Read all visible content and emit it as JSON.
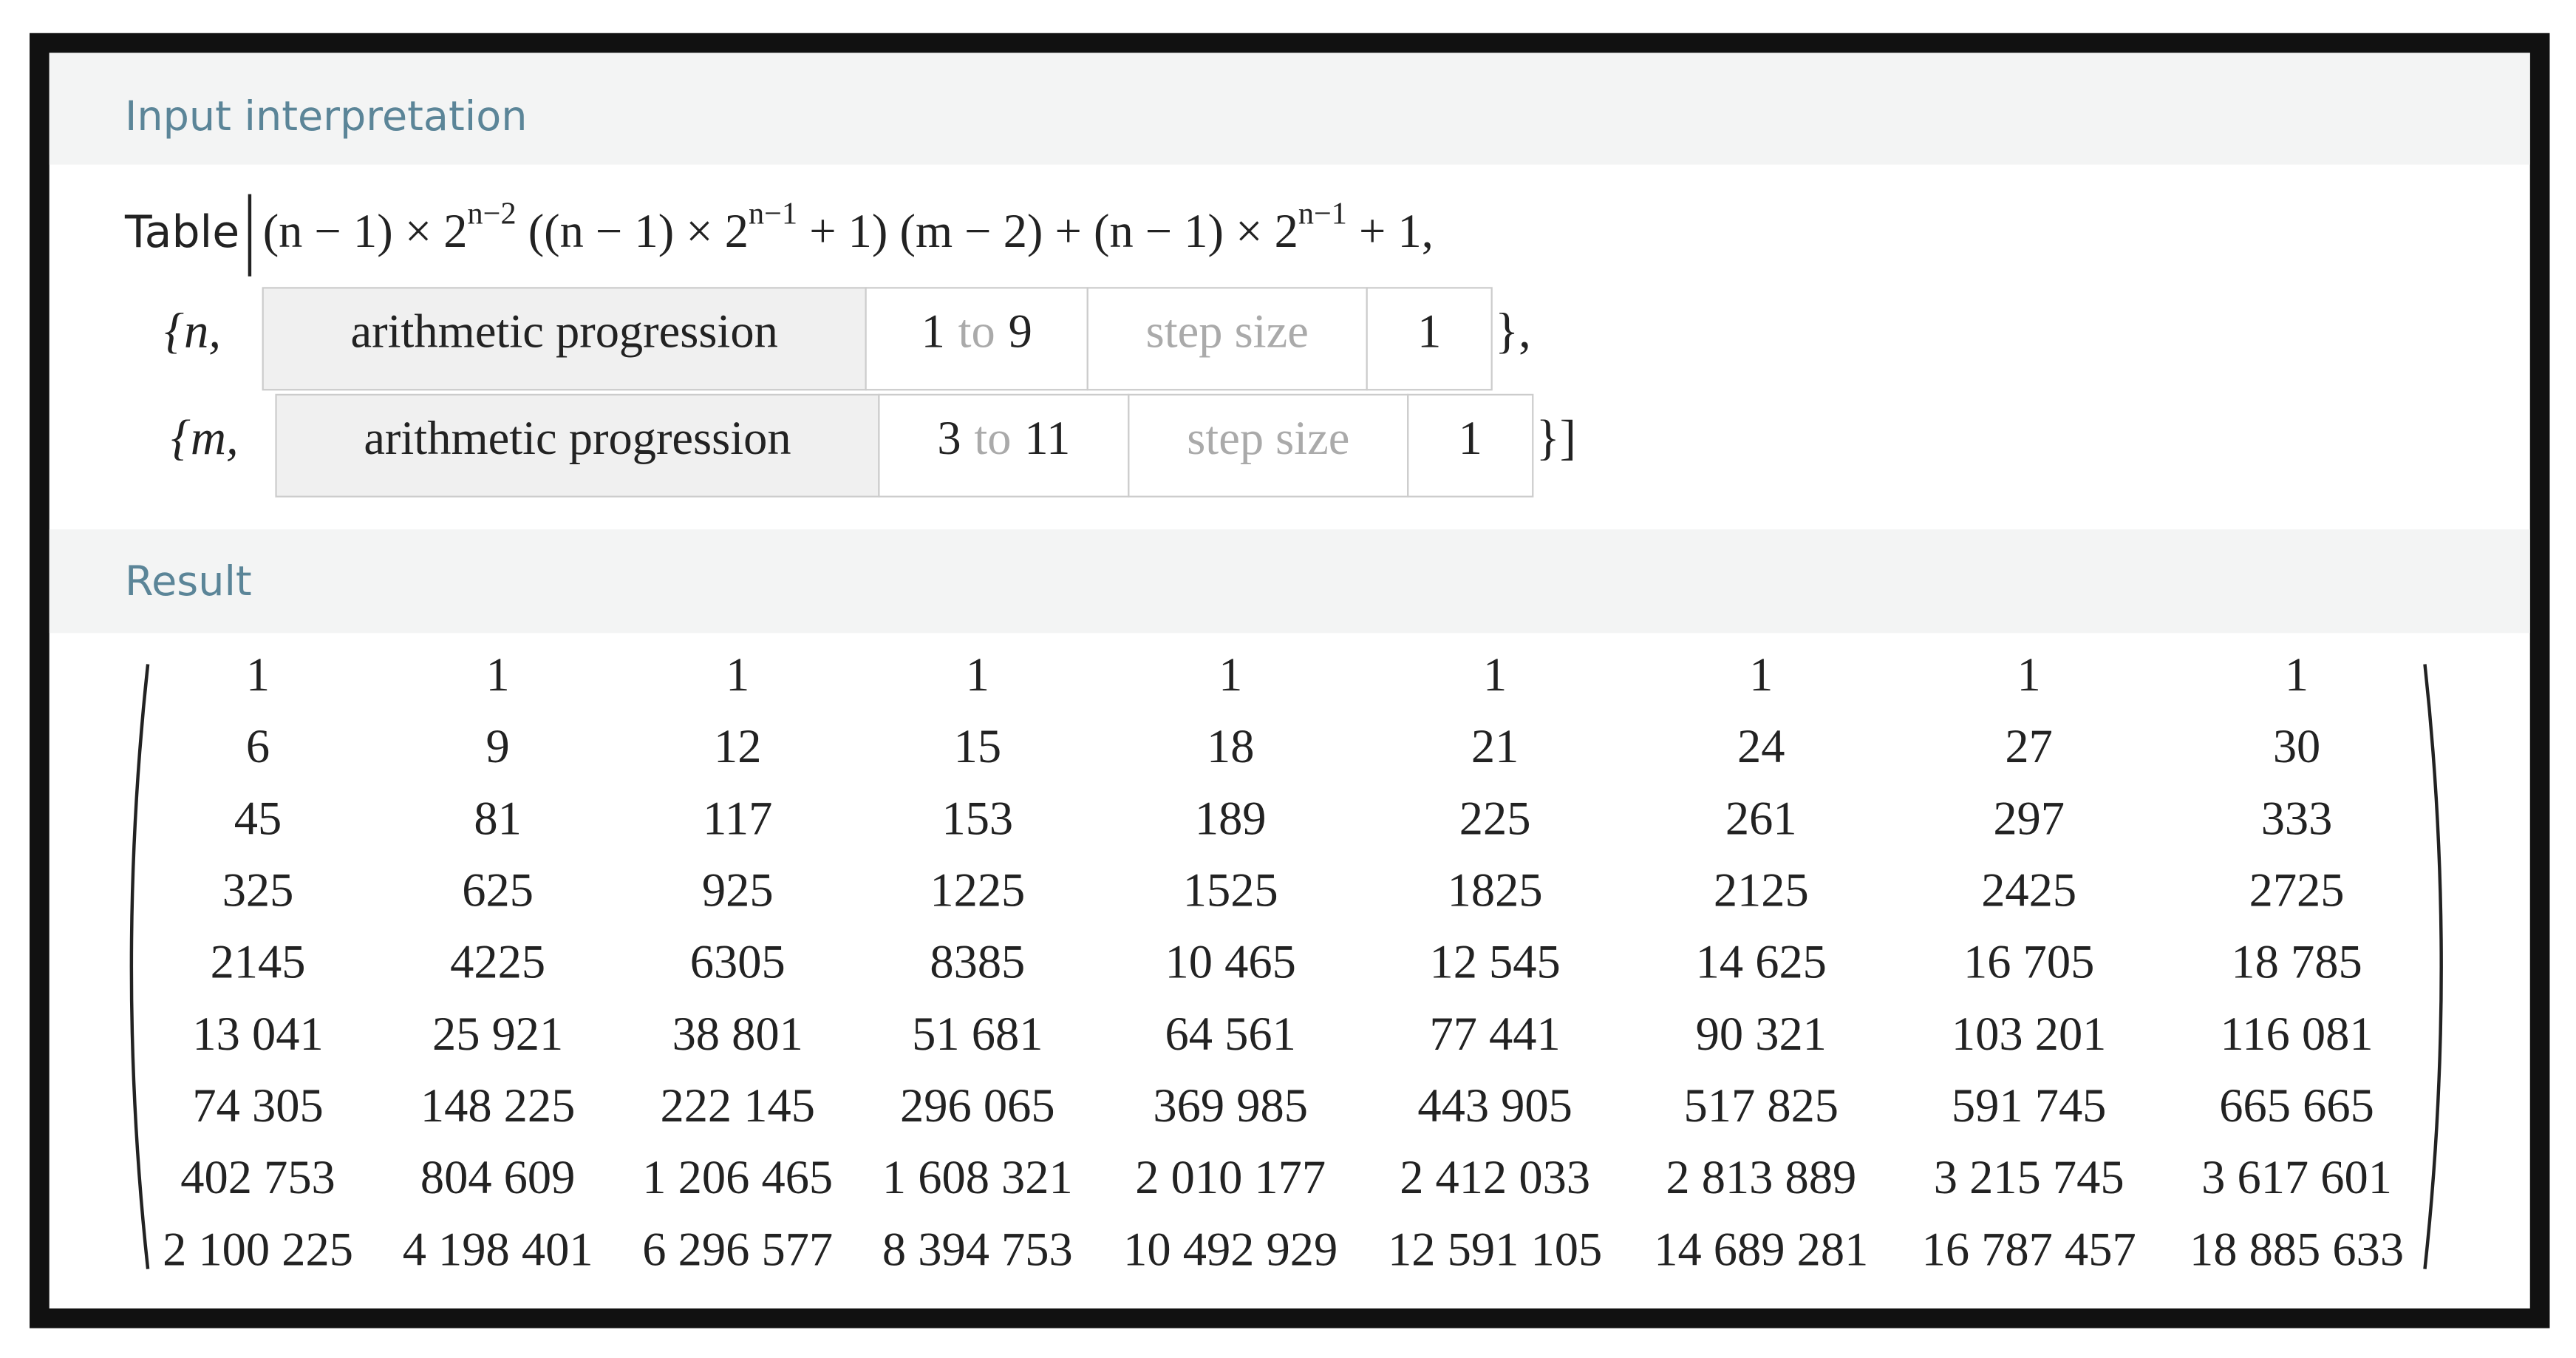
{
  "input_header": "Input interpretation",
  "formula": {
    "head": "Table",
    "parts": [
      {
        "text": "(n − 1) × 2"
      },
      {
        "sup": "n−2"
      },
      {
        "text": " ((n − 1) × 2"
      },
      {
        "sup": "n−1"
      },
      {
        "text": " + 1) (m − 2) + (n − 1) × 2"
      },
      {
        "sup": "n−1"
      },
      {
        "text": " + 1,"
      }
    ]
  },
  "ranges": [
    {
      "open": "{n,",
      "kind": "arithmetic progression",
      "from": 1,
      "to_word": "to",
      "to": 9,
      "step_label": "step size",
      "step": 1,
      "close": "},"
    },
    {
      "open": "{m,",
      "kind": "arithmetic progression",
      "from": 3,
      "to_word": "to",
      "to": 11,
      "step_label": "step size",
      "step": 1,
      "close": "}]"
    }
  ],
  "result_header": "Result",
  "matrix": [
    [
      "1",
      "1",
      "1",
      "1",
      "1",
      "1",
      "1",
      "1",
      "1"
    ],
    [
      "6",
      "9",
      "12",
      "15",
      "18",
      "21",
      "24",
      "27",
      "30"
    ],
    [
      "45",
      "81",
      "117",
      "153",
      "189",
      "225",
      "261",
      "297",
      "333"
    ],
    [
      "325",
      "625",
      "925",
      "1225",
      "1525",
      "1825",
      "2125",
      "2425",
      "2725"
    ],
    [
      "2145",
      "4225",
      "6305",
      "8385",
      "10 465",
      "12 545",
      "14 625",
      "16 705",
      "18 785"
    ],
    [
      "13 041",
      "25 921",
      "38 801",
      "51 681",
      "64 561",
      "77 441",
      "90 321",
      "103 201",
      "116 081"
    ],
    [
      "74 305",
      "148 225",
      "222 145",
      "296 065",
      "369 985",
      "443 905",
      "517 825",
      "591 745",
      "665 665"
    ],
    [
      "402 753",
      "804 609",
      "1 206 465",
      "1 608 321",
      "2 010 177",
      "2 412 033",
      "2 813 889",
      "3 215 745",
      "3 617 601"
    ],
    [
      "2 100 225",
      "4 198 401",
      "6 296 577",
      "8 394 753",
      "10 492 929",
      "12 591 105",
      "14 689 281",
      "16 787 457",
      "18 885 633"
    ]
  ]
}
